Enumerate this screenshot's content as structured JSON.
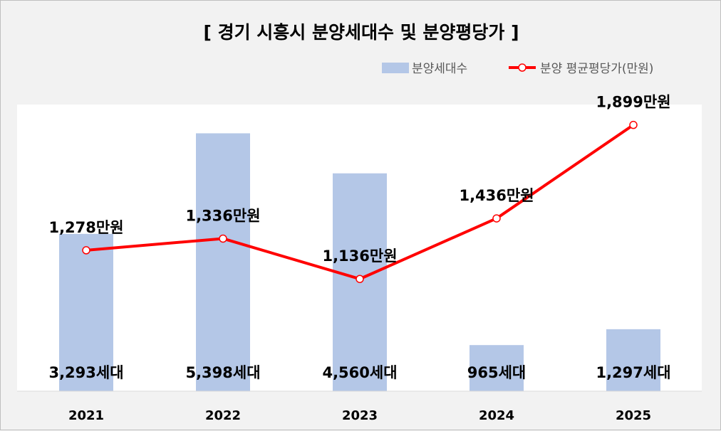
{
  "chart_data": {
    "type": "bar+line",
    "title": "[ 경기 시흥시 분양세대수 및 분양평당가 ]",
    "categories": [
      "2021",
      "2022",
      "2023",
      "2024",
      "2025"
    ],
    "series": [
      {
        "name": "분양세대수",
        "type": "bar",
        "values": [
          3293,
          5398,
          4560,
          965,
          1297
        ],
        "labels": [
          "3,293세대",
          "5,398세대",
          "4,560세대",
          "965세대",
          "1,297세대"
        ],
        "color": "#b4c7e7"
      },
      {
        "name": "분양 평균평당가(만원)",
        "type": "line",
        "values": [
          1278,
          1336,
          1136,
          1436,
          1899
        ],
        "labels": [
          "1,278만원",
          "1,336만원",
          "1,136만원",
          "1,436만원",
          "1,899만원"
        ],
        "color": "#ff0000"
      }
    ],
    "bar_axis_range": [
      0,
      6000
    ],
    "line_axis_range": [
      580,
      2000
    ],
    "legend_position": "top-right",
    "grid": false
  }
}
